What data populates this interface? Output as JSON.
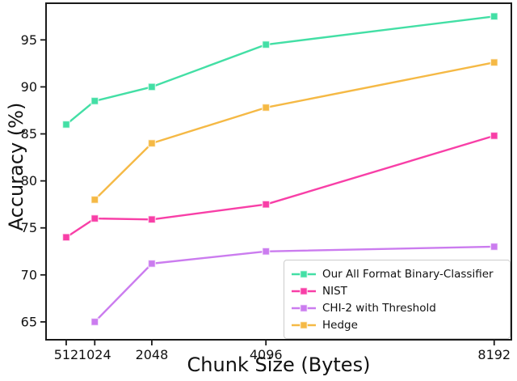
{
  "figure": {
    "xlabel": "Chunk Size (Bytes)",
    "ylabel": "Accuracy (%)"
  },
  "chart_data": {
    "type": "line",
    "title": "",
    "xlabel": "Chunk Size (Bytes)",
    "ylabel": "Accuracy (%)",
    "xticks": [
      512,
      1024,
      2048,
      4096,
      8192
    ],
    "yticks": [
      65,
      70,
      75,
      80,
      85,
      90,
      95
    ],
    "xlim": [
      150,
      8500
    ],
    "ylim": [
      63.1,
      98.9
    ],
    "grid": false,
    "marker": "square",
    "legend_position": "lower right",
    "series": [
      {
        "name": "Our All Format Binary-Classifier",
        "color": "#43DFA5",
        "x": [
          512,
          1024,
          2048,
          4096,
          8192
        ],
        "y": [
          86.0,
          88.5,
          90.0,
          94.5,
          97.5
        ]
      },
      {
        "name": "NIST",
        "color": "#F83FA7",
        "x": [
          512,
          1024,
          2048,
          4096,
          8192
        ],
        "y": [
          74.0,
          76.0,
          75.9,
          77.5,
          84.8
        ]
      },
      {
        "name": "CHI-2 with Threshold",
        "color": "#CB7CEF",
        "x": [
          1024,
          2048,
          4096,
          8192
        ],
        "y": [
          65.0,
          71.2,
          72.5,
          73.0
        ]
      },
      {
        "name": "Hedge",
        "color": "#F5B945",
        "x": [
          1024,
          2048,
          4096,
          8192
        ],
        "y": [
          78.0,
          84.0,
          87.8,
          92.6
        ]
      }
    ]
  }
}
